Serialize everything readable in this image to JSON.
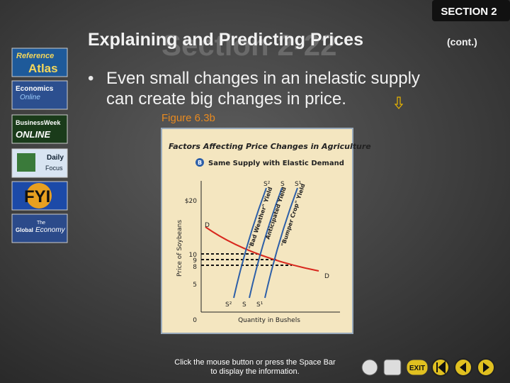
{
  "header": {
    "section_tab": "SECTION 2",
    "watermark": "Section 2-22",
    "title": "Explaining and Predicting Prices",
    "title_suffix": "(cont.)"
  },
  "sidebar": {
    "buttons": [
      "Reference",
      "Atlas",
      "Economics",
      "Online",
      "BusinessWeek",
      "ONLINE",
      "Daily",
      "Focus",
      "FYI",
      "The",
      "Global",
      "Economy"
    ]
  },
  "body": {
    "bullet_line_1": "Even small changes in an inelastic supply",
    "bullet_line_2": "can create big changes in price.",
    "figure_caption": "Figure 6.3b"
  },
  "figure": {
    "title": "Factors Affecting Price Changes in Agriculture",
    "panel_letter": "B",
    "subtitle": "Same Supply with Elastic Demand",
    "y_axis_label": "Price of Soybeans",
    "x_axis_label": "Quantity in Bushels",
    "y_tick_labels": [
      "$20",
      "10",
      "9",
      "8",
      "5",
      "0"
    ],
    "supply_labels": [
      "S²",
      "S",
      "S¹"
    ],
    "demand_label": "D",
    "curve_labels": [
      "\"Bad Weather\" Yield",
      "Anticipated Yield",
      "\"Bumper Crop\" Yield"
    ]
  },
  "footer": {
    "instruction_line_1": "Click the mouse button or press the Space Bar",
    "instruction_line_2": "to display the information.",
    "exit_button": "EXIT"
  }
}
